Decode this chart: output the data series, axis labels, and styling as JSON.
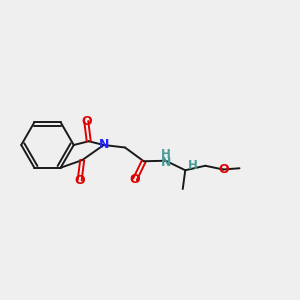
{
  "background_color": "#efefef",
  "bond_color": "#1a1a1a",
  "N_color": "#2020ff",
  "O_color": "#e00000",
  "NH_color": "#4a9a9a",
  "figsize": [
    3.0,
    3.0
  ],
  "dpi": 100,
  "xlim": [
    0,
    12
  ],
  "ylim": [
    0,
    10
  ]
}
